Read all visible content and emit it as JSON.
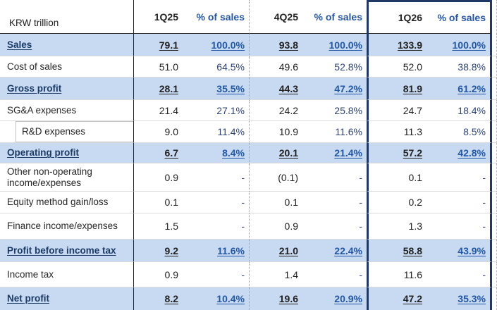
{
  "unit_label": "KRW trillion",
  "columns": [
    {
      "label": "1Q25",
      "type": "value"
    },
    {
      "label": "% of sales",
      "type": "pct"
    },
    {
      "label": "4Q25",
      "type": "value"
    },
    {
      "label": "% of sales",
      "type": "pct"
    },
    {
      "label": "1Q26",
      "type": "value",
      "boxed": true
    },
    {
      "label": "% of sales",
      "type": "pct",
      "boxed": true
    }
  ],
  "rows": [
    {
      "label": "Sales",
      "emphasis": true,
      "values": [
        "79.1",
        "100.0%",
        "93.8",
        "100.0%",
        "133.9",
        "100.0%"
      ]
    },
    {
      "label": "Cost of sales",
      "values": [
        "51.0",
        "64.5%",
        "49.6",
        "52.8%",
        "52.0",
        "38.8%"
      ]
    },
    {
      "label": "Gross profit",
      "emphasis": true,
      "values": [
        "28.1",
        "35.5%",
        "44.3",
        "47.2%",
        "81.9",
        "61.2%"
      ]
    },
    {
      "label": "SG&A expenses",
      "values": [
        "21.4",
        "27.1%",
        "24.2",
        "25.8%",
        "24.7",
        "18.4%"
      ]
    },
    {
      "label": "R&D expenses",
      "indent": true,
      "values": [
        "9.0",
        "11.4%",
        "10.9",
        "11.6%",
        "11.3",
        "8.5%"
      ]
    },
    {
      "label": "Operating profit",
      "emphasis": true,
      "values": [
        "6.7",
        "8.4%",
        "20.1",
        "21.4%",
        "57.2",
        "42.8%"
      ]
    },
    {
      "label": "Other non-operating income/expenses",
      "values": [
        "0.9",
        "-",
        "(0.1)",
        "-",
        "0.1",
        "-"
      ]
    },
    {
      "label": "Equity method gain/loss",
      "values": [
        "0.1",
        "-",
        "0.1",
        "-",
        "0.2",
        "-"
      ]
    },
    {
      "label": "Finance income/expenses",
      "values": [
        "1.5",
        "-",
        "0.9",
        "-",
        "1.3",
        "-"
      ]
    },
    {
      "label": "Profit before income tax",
      "emphasis": true,
      "values": [
        "9.2",
        "11.6%",
        "21.0",
        "22.4%",
        "58.8",
        "43.9%"
      ]
    },
    {
      "label": "Income tax",
      "values": [
        "0.9",
        "-",
        "1.4",
        "-",
        "11.6",
        "-"
      ]
    },
    {
      "label": "Net profit",
      "emphasis": true,
      "values": [
        "8.2",
        "10.4%",
        "19.6",
        "20.9%",
        "47.2",
        "35.3%"
      ]
    }
  ],
  "colors": {
    "highlight_row_bg": "#C7DAF1",
    "box_border": "#1F3864",
    "column_divider": "#262626",
    "row_divider": "#DBDBDB",
    "pct_text": "#2E4374",
    "pct_text_emphasis": "#2157A6",
    "pct_header_text": "#2456A5"
  }
}
